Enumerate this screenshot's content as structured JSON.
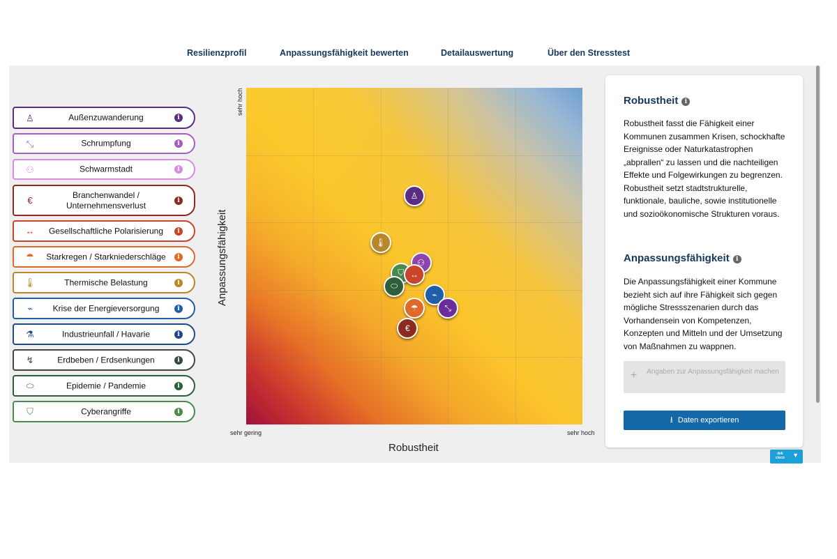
{
  "nav": {
    "items": [
      "Resilienzprofil",
      "Anpassungsfähigkeit bewerten",
      "Detailauswertung",
      "Über den Stresstest"
    ]
  },
  "scenarios": [
    {
      "label": "Außenzuwanderung",
      "color": "#5a2d82",
      "icon": "people-icon"
    },
    {
      "label": "Schrumpfung",
      "color": "#a65ec4",
      "icon": "shrink-arrows-icon"
    },
    {
      "label": "Schwarmstadt",
      "color": "#d98be0",
      "icon": "crowd-icon"
    },
    {
      "label": "Branchenwandel / Unternehmensverlust",
      "color": "#8b2a1d",
      "icon": "euro-cycle-icon"
    },
    {
      "label": "Gesellschaftliche Polarisierung",
      "color": "#c8452b",
      "icon": "split-arrows-icon"
    },
    {
      "label": "Starkregen / Starkniederschläge",
      "color": "#e0692a",
      "icon": "rain-cloud-icon"
    },
    {
      "label": "Thermische Belastung",
      "color": "#b8862b",
      "icon": "thermometer-icon"
    },
    {
      "label": "Krise der Energieversorgung",
      "color": "#1f5fa8",
      "icon": "power-off-icon"
    },
    {
      "label": "Industrieunfall / Havarie",
      "color": "#204a86",
      "icon": "test-tube-icon"
    },
    {
      "label": "Erdbeben / Erdsenkungen",
      "color": "#3a4a3d",
      "icon": "quake-icon"
    },
    {
      "label": "Epidemie / Pandemie",
      "color": "#2f5e3a",
      "icon": "mask-icon"
    },
    {
      "label": "Cyberangriffe",
      "color": "#4a8a4e",
      "icon": "shield-icon"
    }
  ],
  "chart_data": {
    "type": "scatter",
    "xlabel": "Robustheit",
    "ylabel": "Anpassungsfähigkeit",
    "x_tick_labels": [
      "sehr gering",
      "sehr hoch"
    ],
    "y_tick_labels": [
      "sehr hoch"
    ],
    "xlim": [
      0,
      1
    ],
    "ylim": [
      0,
      1
    ],
    "grid": true,
    "points": [
      {
        "name": "Außenzuwanderung",
        "x": 0.5,
        "y": 0.68,
        "color": "#5a2d82"
      },
      {
        "name": "Thermische Belastung",
        "x": 0.4,
        "y": 0.54,
        "color": "#b8862b"
      },
      {
        "name": "Schwarmstadt",
        "x": 0.52,
        "y": 0.48,
        "color": "#8e44ad"
      },
      {
        "name": "Cyberangriffe",
        "x": 0.46,
        "y": 0.45,
        "color": "#4a8a4e"
      },
      {
        "name": "Gesellschaftliche Polarisierung",
        "x": 0.5,
        "y": 0.445,
        "color": "#c8452b"
      },
      {
        "name": "Epidemie / Pandemie",
        "x": 0.44,
        "y": 0.41,
        "color": "#2f5e3a"
      },
      {
        "name": "Krise der Energieversorgung",
        "x": 0.56,
        "y": 0.385,
        "color": "#1f5fa8"
      },
      {
        "name": "Schrumpfung",
        "x": 0.6,
        "y": 0.345,
        "color": "#6a2d9a"
      },
      {
        "name": "Starkregen / Starkniederschläge",
        "x": 0.5,
        "y": 0.345,
        "color": "#e0692a"
      },
      {
        "name": "Branchenwandel / Unternehmensverlust",
        "x": 0.48,
        "y": 0.285,
        "color": "#8b2a1d"
      }
    ]
  },
  "panel": {
    "robust_title": "Robustheit",
    "robust_text": "Robustheit fasst die Fähigkeit einer Kommunen zusammen Krisen, schockhafte Ereignisse oder Naturkatastrophen „abprallen“ zu lassen und die nachteiligen Effekte und Folgewirkungen zu begrenzen. Robustheit setzt stadtstrukturelle, funktionale, bauliche, sowie institutionelle und sozioökonomische Strukturen voraus.",
    "adapt_title": "Anpassungsfähigkeit",
    "adapt_text": "Die Anpassungsfähigkeit einer Kommune bezieht sich auf ihre Fähigkeit sich gegen mögliche Stressszenarien durch das Vorhandensein von Kompetenzen, Konzepten und Mitteln und der Umsetzung von Maßnahmen zu wappnen.",
    "adapt_button": "Angaben zur Anpassungsfähigkeit machen",
    "export_button": "Daten exportieren"
  },
  "widget": {
    "logo": "cisco"
  }
}
